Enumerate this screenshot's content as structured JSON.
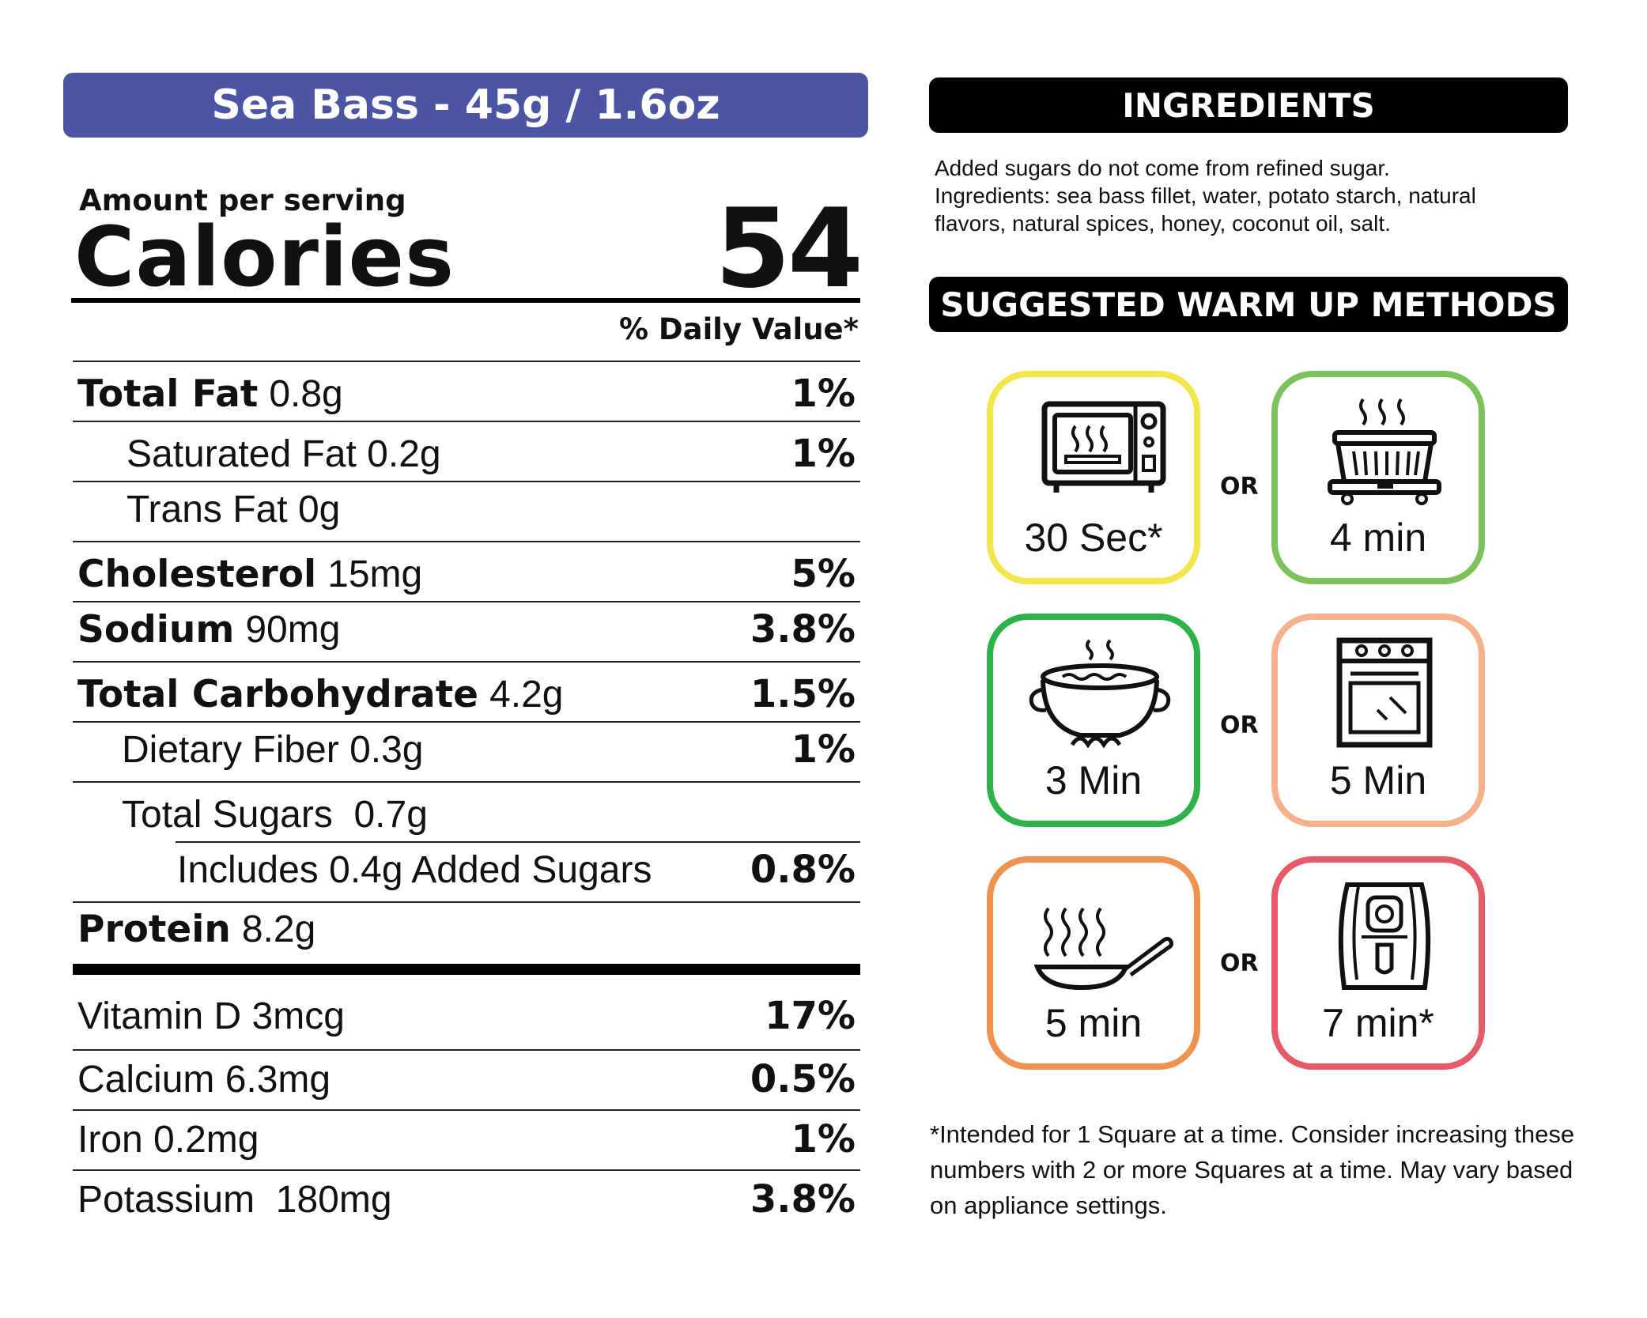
{
  "colors": {
    "title_bar": "#4b55a3",
    "card_microwave": "#f2e64d",
    "card_steamer": "#7cc25a",
    "card_boil": "#2db34a",
    "card_oven": "#f5b08c",
    "card_pan": "#f0924f",
    "card_airfryer": "#e75a6a"
  },
  "label": {
    "title": "Sea Bass - 45g / 1.6oz",
    "amount_per_serving": "Amount per serving",
    "calories_label": "Calories",
    "calories_value": "54",
    "daily_value_header": "% Daily Value*",
    "rows": [
      {
        "name": "Total Fat",
        "amount": "0.8g",
        "dv": "1%"
      },
      {
        "name": "",
        "amount": "Saturated Fat 0.2g",
        "dv": "1%"
      },
      {
        "name": "",
        "amount": "Trans Fat 0g",
        "dv": ""
      },
      {
        "name": "Cholesterol",
        "amount": "15mg",
        "dv": "5%"
      },
      {
        "name": "Sodium",
        "amount": "90mg",
        "dv": "3.8%"
      },
      {
        "name": "Total Carbohydrate",
        "amount": "4.2g",
        "dv": "1.5%"
      },
      {
        "name": "",
        "amount": "Dietary Fiber 0.3g",
        "dv": "1%"
      },
      {
        "name": "",
        "amount": "Total Sugars  0.7g",
        "dv": ""
      },
      {
        "name": "",
        "amount": "Includes 0.4g Added Sugars",
        "dv": "0.8%"
      },
      {
        "name": "Protein",
        "amount": "8.2g",
        "dv": ""
      }
    ],
    "vitamins": [
      {
        "amount": "Vitamin D 3mcg",
        "dv": "17%"
      },
      {
        "amount": "Calcium 6.3mg",
        "dv": "0.5%"
      },
      {
        "amount": "Iron 0.2mg",
        "dv": "1%"
      },
      {
        "amount": "Potassium  180mg",
        "dv": "3.8%"
      }
    ]
  },
  "ingredients": {
    "heading": "INGREDIENTS",
    "line1": "Added sugars do not come from refined sugar.",
    "line2": "Ingredients: sea bass fillet, water, potato starch, natural flavors, natural spices, honey, coconut oil, salt."
  },
  "warmup": {
    "heading": "SUGGESTED WARM UP METHODS",
    "or_label": "OR",
    "methods": [
      {
        "icon": "microwave-icon",
        "time": "30 Sec*"
      },
      {
        "icon": "steamer-icon",
        "time": "4 min"
      },
      {
        "icon": "boiling-pot-icon",
        "time": "3 Min"
      },
      {
        "icon": "oven-icon",
        "time": "5 Min"
      },
      {
        "icon": "frying-pan-icon",
        "time": "5 min"
      },
      {
        "icon": "air-fryer-icon",
        "time": "7 min*"
      }
    ],
    "footnote": "*Intended for 1 Square at a time. Consider increasing these numbers with 2 or more Squares at a time. May vary based on appliance settings."
  }
}
